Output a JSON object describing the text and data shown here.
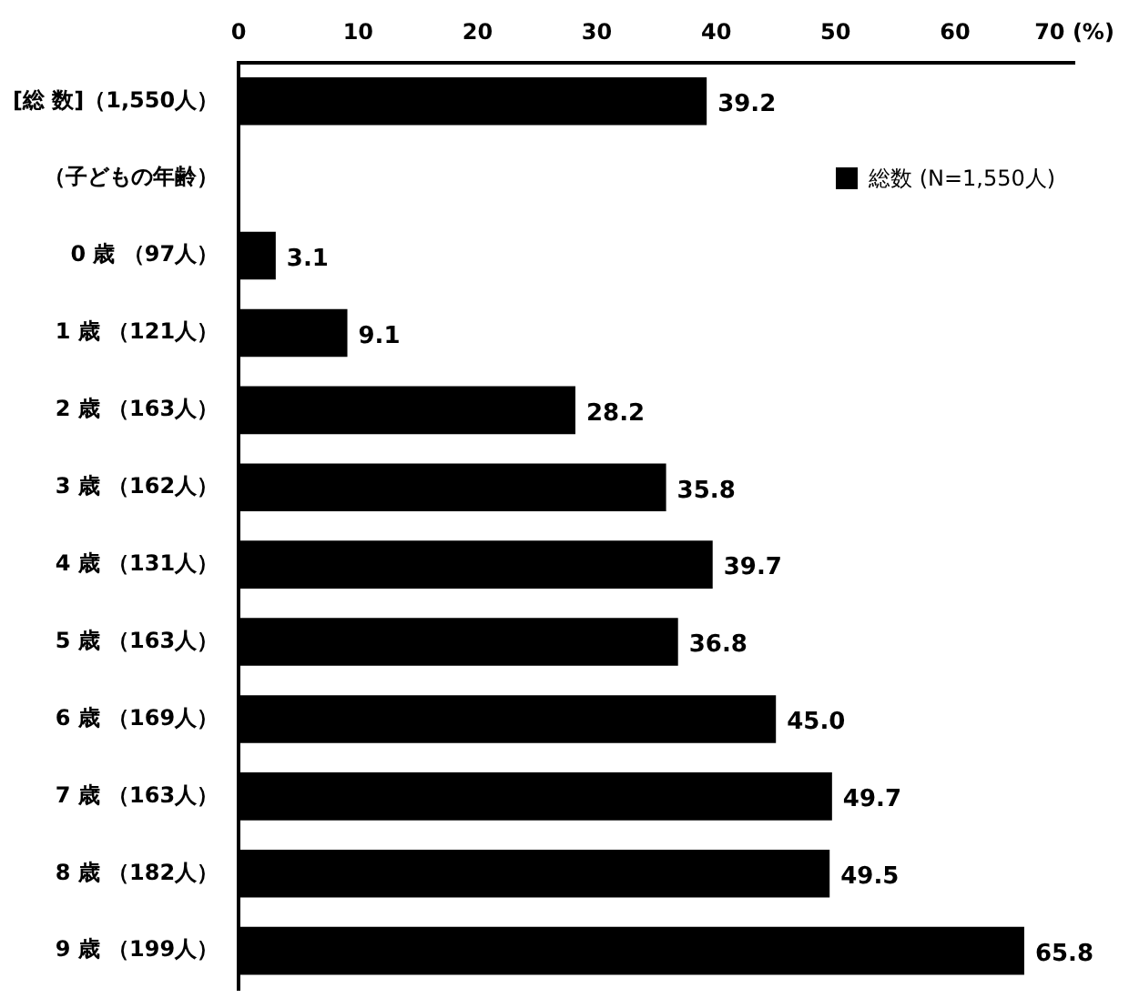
{
  "chart_data": {
    "type": "bar",
    "orientation": "horizontal",
    "categories": [
      "[総 数]（1,550人）",
      "（子どもの年齢）",
      "0 歳 （97人）",
      "1 歳 （121人）",
      "2 歳 （163人）",
      "3 歳 （162人）",
      "4 歳 （131人）",
      "5 歳 （163人）",
      "6 歳 （169人）",
      "7 歳 （163人）",
      "8 歳 （182人）",
      "9 歳 （199人）"
    ],
    "series": [
      {
        "name": "総数 (N=1,550人)",
        "color": "#000000",
        "values": [
          39.2,
          null,
          3.1,
          9.1,
          28.2,
          35.8,
          39.7,
          36.8,
          45.0,
          49.7,
          49.5,
          65.8
        ]
      }
    ],
    "value_labels": [
      "39.2",
      null,
      "3.1",
      "9.1",
      "28.2",
      "35.8",
      "39.7",
      "36.8",
      "45.0",
      "49.7",
      "49.5",
      "65.8"
    ],
    "xlim": [
      0,
      70
    ],
    "xticks": [
      0,
      10,
      20,
      30,
      40,
      50,
      60,
      {
        "value": 70,
        "label": "70 (%)"
      }
    ],
    "grid": false,
    "legend": "top right"
  }
}
